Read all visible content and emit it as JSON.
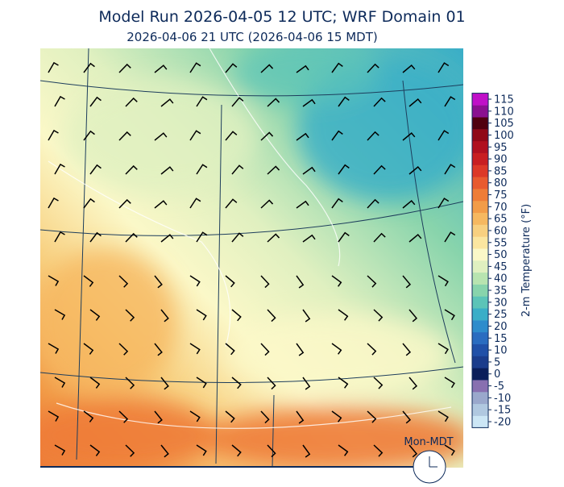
{
  "header": {
    "title": "Model Run 2026-04-05 12 UTC; WRF Domain 01",
    "subtitle": "2026-04-06 21 UTC  (2026-04-06 15 MDT)"
  },
  "colorbar": {
    "label": "2-m Temperature (°F)",
    "ticks": [
      -20,
      -15,
      -10,
      -5,
      0,
      5,
      10,
      15,
      20,
      25,
      30,
      35,
      40,
      45,
      50,
      55,
      60,
      65,
      70,
      75,
      80,
      85,
      90,
      95,
      100,
      105,
      110,
      115
    ],
    "colors": [
      "#cce6f5",
      "#b0c8e0",
      "#9aa8cc",
      "#8870b0",
      "#0a1e5a",
      "#1a3c8c",
      "#2050a8",
      "#2a6cc0",
      "#2e8ccc",
      "#3aaec8",
      "#5cc4b8",
      "#88d4ac",
      "#b8e4b0",
      "#e0f0c0",
      "#fbf8c8",
      "#fbe6a0",
      "#f8d080",
      "#f6b860",
      "#f29c48",
      "#ee7c38",
      "#e85a30",
      "#dc3828",
      "#c81e22",
      "#b01020",
      "#900818",
      "#500010",
      "#8a1090",
      "#c010c8"
    ]
  },
  "clock": {
    "label": "Mon-MDT"
  }
}
